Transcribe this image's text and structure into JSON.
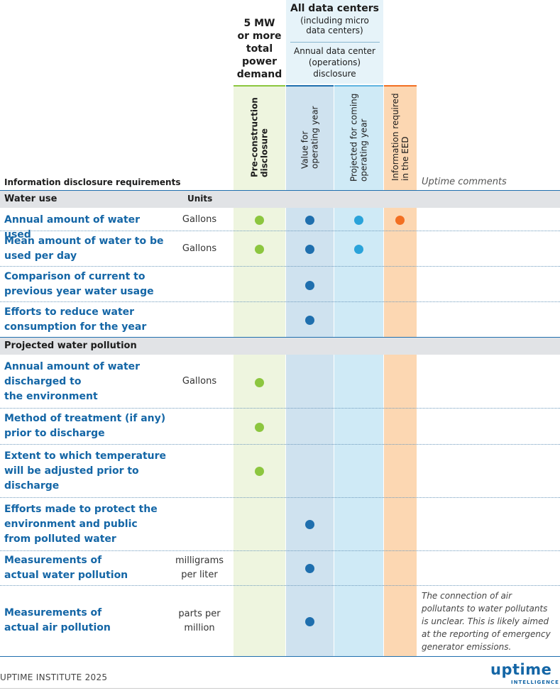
{
  "header": {
    "col_5mw": "5 MW\nor more\ntotal\npower\ndemand",
    "all_title": "All data centers",
    "all_sub": "(including micro\ndata centers)",
    "annual": "Annual data center\n(operations)\ndisclosure",
    "preconstruction": "Pre-construction\ndisclosure",
    "value_year": "Value for\noperating year",
    "projected": "Projected for coming\noperating year",
    "eed": "Information required\nin the EED",
    "info_req": "Information disclosure requirements",
    "uptime_comments": "Uptime comments"
  },
  "sections": {
    "water_use": "Water use",
    "units": "Units",
    "water_pollution": "Projected water pollution"
  },
  "rows": [
    {
      "label": "Annual amount of water used",
      "unit": "Gallons"
    },
    {
      "label": "Mean amount of water to be\nused per day",
      "unit": "Gallons"
    },
    {
      "label": "Comparison of current to\nprevious year water usage",
      "unit": ""
    },
    {
      "label": "Efforts to reduce water\nconsumption for the year",
      "unit": ""
    },
    {
      "label": "Annual amount of water\ndischarged to\nthe environment",
      "unit": "Gallons"
    },
    {
      "label": "Method of treatment (if any)\nprior to discharge",
      "unit": ""
    },
    {
      "label": "Extent to which temperature\nwill be adjusted prior to\ndischarge",
      "unit": ""
    },
    {
      "label": "Efforts made to protect the\nenvironment and public\nfrom polluted water",
      "unit": ""
    },
    {
      "label": "Measurements of\nactual water pollution",
      "unit": "milligrams\nper liter"
    },
    {
      "label": "Measurements of\nactual air pollution",
      "unit": "parts per\nmillion"
    }
  ],
  "comment_air": "The connection of air\npollutants to water pollutants\nis unclear. This is likely aimed\nat the reporting of emergency\ngenerator emissions.",
  "footer": "UPTIME INSTITUTE 2025",
  "logo": {
    "main": "uptime",
    "sub": "INTELLIGENCE"
  },
  "colors": {
    "green": "#8cc63f",
    "blue": "#1f6fae",
    "light_blue": "#2aa3da",
    "orange": "#f26f22"
  }
}
